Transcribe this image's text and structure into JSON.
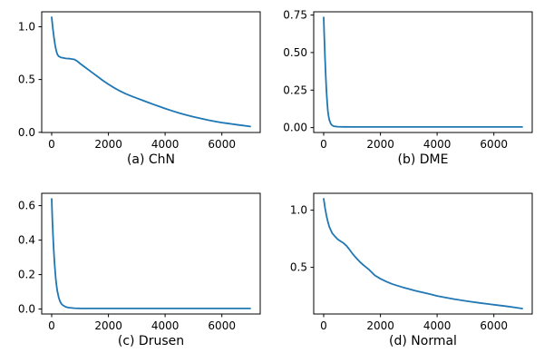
{
  "figure": {
    "background": "#ffffff",
    "line_color": "#1f77b4",
    "spine_color": "#000000",
    "tick_label_color": "#000000",
    "line_width": 1.8
  },
  "chart_data": [
    {
      "type": "line",
      "caption": "(a) ChN",
      "title": "",
      "xlabel": "(a) ChN",
      "ylabel": "",
      "legend": null,
      "grid": false,
      "xlim": [
        -350,
        7350
      ],
      "ylim": [
        -0.002,
        1.142
      ],
      "xticks": [
        0,
        2000,
        4000,
        6000
      ],
      "xtick_labels": [
        "0",
        "2000",
        "4000",
        "6000"
      ],
      "yticks": [
        0.0,
        0.5,
        1.0
      ],
      "ytick_labels": [
        "0.0",
        "0.5",
        "1.0"
      ],
      "points": [
        [
          0,
          1.09
        ],
        [
          40,
          0.99
        ],
        [
          80,
          0.9
        ],
        [
          120,
          0.83
        ],
        [
          160,
          0.775
        ],
        [
          200,
          0.74
        ],
        [
          250,
          0.72
        ],
        [
          320,
          0.71
        ],
        [
          400,
          0.705
        ],
        [
          500,
          0.7
        ],
        [
          650,
          0.697
        ],
        [
          800,
          0.69
        ],
        [
          900,
          0.675
        ],
        [
          1000,
          0.652
        ],
        [
          1200,
          0.612
        ],
        [
          1400,
          0.572
        ],
        [
          1600,
          0.532
        ],
        [
          1800,
          0.492
        ],
        [
          2000,
          0.455
        ],
        [
          2200,
          0.422
        ],
        [
          2400,
          0.392
        ],
        [
          2600,
          0.366
        ],
        [
          2800,
          0.344
        ],
        [
          3000,
          0.323
        ],
        [
          3200,
          0.303
        ],
        [
          3400,
          0.283
        ],
        [
          3600,
          0.263
        ],
        [
          3800,
          0.244
        ],
        [
          4000,
          0.225
        ],
        [
          4250,
          0.203
        ],
        [
          4500,
          0.182
        ],
        [
          4750,
          0.163
        ],
        [
          5000,
          0.146
        ],
        [
          5250,
          0.131
        ],
        [
          5500,
          0.117
        ],
        [
          5750,
          0.104
        ],
        [
          6000,
          0.092
        ],
        [
          6250,
          0.082
        ],
        [
          6500,
          0.073
        ],
        [
          6750,
          0.064
        ],
        [
          7000,
          0.055
        ]
      ]
    },
    {
      "type": "line",
      "caption": "(b) DME",
      "title": "",
      "xlabel": "(b) DME",
      "ylabel": "",
      "legend": null,
      "grid": false,
      "xlim": [
        -350,
        7350
      ],
      "ylim": [
        -0.0326,
        0.7716
      ],
      "xticks": [
        0,
        2000,
        4000,
        6000
      ],
      "xtick_labels": [
        "0",
        "2000",
        "4000",
        "6000"
      ],
      "yticks": [
        0.0,
        0.25,
        0.5,
        0.75
      ],
      "ytick_labels": [
        "0.00",
        "0.25",
        "0.50",
        "0.75"
      ],
      "points": [
        [
          0,
          0.735
        ],
        [
          25,
          0.6
        ],
        [
          50,
          0.46
        ],
        [
          75,
          0.34
        ],
        [
          100,
          0.24
        ],
        [
          125,
          0.165
        ],
        [
          150,
          0.112
        ],
        [
          175,
          0.076
        ],
        [
          200,
          0.052
        ],
        [
          250,
          0.026
        ],
        [
          300,
          0.015
        ],
        [
          350,
          0.01
        ],
        [
          400,
          0.008
        ],
        [
          500,
          0.006
        ],
        [
          700,
          0.005
        ],
        [
          1000,
          0.004
        ],
        [
          2000,
          0.004
        ],
        [
          3000,
          0.004
        ],
        [
          4000,
          0.004
        ],
        [
          5000,
          0.004
        ],
        [
          6000,
          0.004
        ],
        [
          7000,
          0.004
        ]
      ]
    },
    {
      "type": "line",
      "caption": "(c) Drusen",
      "title": "",
      "xlabel": "(c) Drusen",
      "ylabel": "",
      "legend": null,
      "grid": false,
      "xlim": [
        -350,
        7350
      ],
      "ylim": [
        -0.0289,
        0.6719
      ],
      "xticks": [
        0,
        2000,
        4000,
        6000
      ],
      "xtick_labels": [
        "0",
        "2000",
        "4000",
        "6000"
      ],
      "yticks": [
        0.0,
        0.2,
        0.4,
        0.6
      ],
      "ytick_labels": [
        "0.0",
        "0.2",
        "0.4",
        "0.6"
      ],
      "points": [
        [
          0,
          0.64
        ],
        [
          25,
          0.525
        ],
        [
          50,
          0.425
        ],
        [
          75,
          0.34
        ],
        [
          100,
          0.27
        ],
        [
          125,
          0.215
        ],
        [
          150,
          0.17
        ],
        [
          175,
          0.135
        ],
        [
          200,
          0.105
        ],
        [
          250,
          0.066
        ],
        [
          300,
          0.043
        ],
        [
          350,
          0.029
        ],
        [
          400,
          0.021
        ],
        [
          500,
          0.012
        ],
        [
          600,
          0.008
        ],
        [
          800,
          0.005
        ],
        [
          1000,
          0.004
        ],
        [
          2000,
          0.003
        ],
        [
          3000,
          0.003
        ],
        [
          4000,
          0.003
        ],
        [
          5000,
          0.003
        ],
        [
          6000,
          0.003
        ],
        [
          7000,
          0.003
        ]
      ]
    },
    {
      "type": "line",
      "caption": "(d) Normal",
      "title": "",
      "xlabel": "(d) Normal",
      "ylabel": "",
      "legend": null,
      "grid": false,
      "xlim": [
        -350,
        7350
      ],
      "ylim": [
        0.092,
        1.148
      ],
      "xticks": [
        0,
        2000,
        4000,
        6000
      ],
      "xtick_labels": [
        "0",
        "2000",
        "4000",
        "6000"
      ],
      "yticks": [
        0.5,
        1.0
      ],
      "ytick_labels": [
        "0.5",
        "1.0"
      ],
      "points": [
        [
          0,
          1.1
        ],
        [
          50,
          1.02
        ],
        [
          100,
          0.95
        ],
        [
          150,
          0.9
        ],
        [
          200,
          0.855
        ],
        [
          300,
          0.8
        ],
        [
          400,
          0.77
        ],
        [
          500,
          0.745
        ],
        [
          600,
          0.728
        ],
        [
          700,
          0.712
        ],
        [
          800,
          0.69
        ],
        [
          900,
          0.66
        ],
        [
          1000,
          0.625
        ],
        [
          1100,
          0.595
        ],
        [
          1200,
          0.568
        ],
        [
          1300,
          0.543
        ],
        [
          1400,
          0.52
        ],
        [
          1500,
          0.5
        ],
        [
          1600,
          0.48
        ],
        [
          1800,
          0.43
        ],
        [
          2000,
          0.4
        ],
        [
          2200,
          0.376
        ],
        [
          2400,
          0.356
        ],
        [
          2600,
          0.34
        ],
        [
          2800,
          0.325
        ],
        [
          3000,
          0.311
        ],
        [
          3200,
          0.298
        ],
        [
          3400,
          0.286
        ],
        [
          3600,
          0.275
        ],
        [
          3800,
          0.263
        ],
        [
          4000,
          0.25
        ],
        [
          4300,
          0.236
        ],
        [
          4600,
          0.222
        ],
        [
          4900,
          0.21
        ],
        [
          5200,
          0.199
        ],
        [
          5500,
          0.189
        ],
        [
          5800,
          0.179
        ],
        [
          6100,
          0.17
        ],
        [
          6400,
          0.161
        ],
        [
          6700,
          0.151
        ],
        [
          7000,
          0.14
        ]
      ]
    }
  ]
}
